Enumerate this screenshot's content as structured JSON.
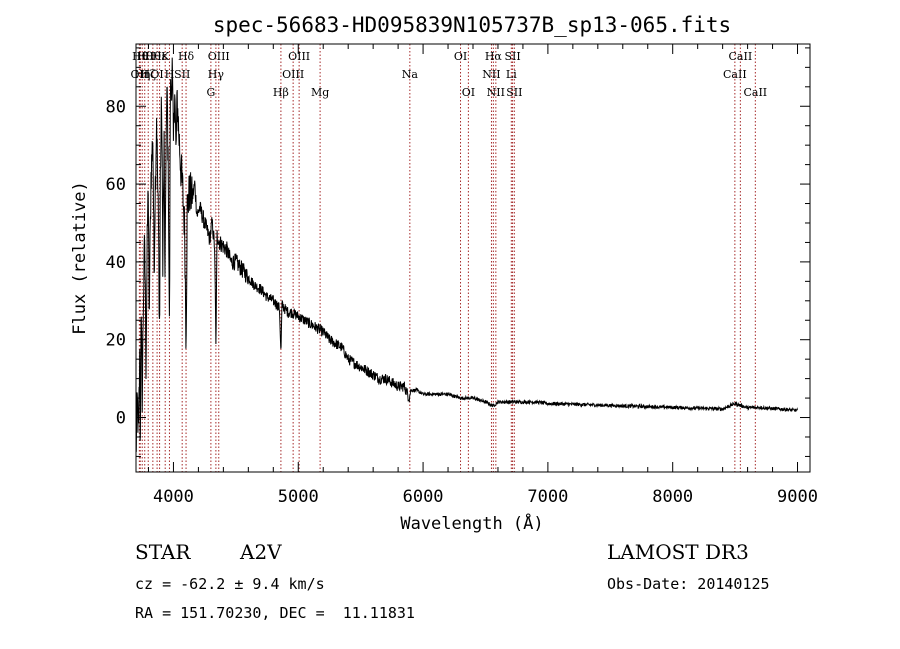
{
  "chart_data": {
    "type": "line",
    "title": "spec-56683-HD095839N105737B_sp13-065.fits",
    "xlabel": "Wavelength (Å)",
    "ylabel": "Flux (relative)",
    "xlim": [
      3700,
      9100
    ],
    "ylim": [
      -14,
      96
    ],
    "x_ticks": [
      4000,
      5000,
      6000,
      7000,
      8000,
      9000
    ],
    "x_tick_labels": [
      "4000",
      "5000",
      "6000",
      "7000",
      "8000",
      "9000"
    ],
    "y_ticks": [
      0,
      20,
      40,
      60,
      80
    ],
    "y_tick_labels": [
      "0",
      "20",
      "40",
      "60",
      "80"
    ],
    "x_minor_step": 200,
    "y_minor_step": 5,
    "series": [
      {
        "name": "spectrum",
        "x": [
          3700,
          3710,
          3720,
          3730,
          3734,
          3740,
          3750,
          3760,
          3770,
          3780,
          3790,
          3798,
          3805,
          3820,
          3835,
          3845,
          3855,
          3865,
          3880,
          3889,
          3895,
          3905,
          3915,
          3925,
          3933,
          3940,
          3950,
          3960,
          3968,
          3975,
          3990,
          4000,
          4010,
          4020,
          4030,
          4045,
          4060,
          4075,
          4090,
          4101,
          4110,
          4130,
          4150,
          4170,
          4190,
          4210,
          4230,
          4250,
          4270,
          4290,
          4310,
          4330,
          4340,
          4350,
          4370,
          4400,
          4430,
          4460,
          4500,
          4550,
          4600,
          4650,
          4700,
          4750,
          4800,
          4830,
          4850,
          4861,
          4870,
          4890,
          4920,
          4950,
          5000,
          5050,
          5100,
          5150,
          5200,
          5250,
          5300,
          5350,
          5400,
          5450,
          5500,
          5550,
          5600,
          5650,
          5700,
          5750,
          5800,
          5850,
          5890,
          5900,
          5950,
          6000,
          6100,
          6200,
          6300,
          6400,
          6500,
          6563,
          6600,
          6700,
          6800,
          6900,
          7000,
          7200,
          7400,
          7600,
          7800,
          8000,
          8200,
          8400,
          8500,
          8600,
          8700,
          8800,
          8900,
          9000
        ],
        "values": [
          -10,
          4,
          -4,
          14,
          -12,
          28,
          6,
          32,
          46,
          14,
          44,
          62,
          24,
          62,
          72,
          38,
          60,
          78,
          48,
          20,
          62,
          82,
          42,
          70,
          30,
          70,
          84,
          58,
          20,
          82,
          90,
          70,
          86,
          68,
          82,
          72,
          64,
          58,
          48,
          20,
          54,
          58,
          56,
          60,
          52,
          54,
          52,
          50,
          48,
          46,
          50,
          44,
          18,
          47,
          45,
          44,
          43,
          40,
          40,
          38,
          36,
          34,
          33,
          31,
          30,
          29,
          28,
          16,
          29,
          28,
          27,
          27,
          26,
          25,
          24,
          23,
          22,
          20,
          19,
          18,
          15,
          14,
          13,
          12,
          11,
          10,
          10,
          9,
          8,
          8,
          5,
          7,
          7,
          6,
          6,
          6,
          5,
          5,
          4,
          3,
          4,
          4,
          4,
          4,
          3.6,
          3.4,
          3.2,
          3,
          2.8,
          2.6,
          2.4,
          2.2,
          3.6,
          2.5,
          2.6,
          2.3,
          2.1,
          1.8
        ]
      }
    ],
    "line_markers": [
      {
        "w": 3727,
        "row": 1,
        "label": "OII",
        "style": "serif"
      },
      {
        "w": 3734,
        "row": 0,
        "label": "Hθ",
        "style": "serif"
      },
      {
        "w": 3750,
        "row": 1,
        "label": "Hη",
        "style": "serif"
      },
      {
        "w": 3770,
        "row": 0,
        "label": "Hθ",
        "style": "serif"
      },
      {
        "w": 3798,
        "row": 1,
        "label": "Hζ",
        "style": "serif"
      },
      {
        "w": 3835,
        "row": 0,
        "label": "Hθ",
        "style": "serif"
      },
      {
        "w": 3869,
        "row": 1,
        "label": "OI",
        "style": "serif"
      },
      {
        "w": 3889,
        "row": 0,
        "label": "Hε",
        "style": "serif"
      },
      {
        "w": 3934,
        "row": 0,
        "label": "K",
        "style": "serif"
      },
      {
        "w": 3968,
        "row": 1,
        "label": "H",
        "style": "serif"
      },
      {
        "w": 4070,
        "row": 1,
        "label": "SII",
        "style": "serif"
      },
      {
        "w": 4101,
        "row": 0,
        "label": "Hδ",
        "style": "serif"
      },
      {
        "w": 4300,
        "row": 2,
        "label": "G",
        "style": "serif"
      },
      {
        "w": 4340,
        "row": 1,
        "label": "Hγ",
        "style": "serif"
      },
      {
        "w": 4363,
        "row": 0,
        "label": "OIII",
        "style": "serif"
      },
      {
        "w": 4861,
        "row": 2,
        "label": "Hβ",
        "style": "serif"
      },
      {
        "w": 4959,
        "row": 1,
        "label": "OIII",
        "style": "serif"
      },
      {
        "w": 5007,
        "row": 0,
        "label": "OIII",
        "style": "serif"
      },
      {
        "w": 5175,
        "row": 2,
        "label": "Mg",
        "style": "serif"
      },
      {
        "w": 5894,
        "row": 1,
        "label": "Na",
        "style": "serif"
      },
      {
        "w": 6300,
        "row": 0,
        "label": "OI",
        "style": "serif"
      },
      {
        "w": 6363,
        "row": 2,
        "label": "OI",
        "style": "serif"
      },
      {
        "w": 6548,
        "row": 1,
        "label": "NII",
        "style": "serif"
      },
      {
        "w": 6563,
        "row": 0,
        "label": "Hα",
        "style": "serif"
      },
      {
        "w": 6583,
        "row": 2,
        "label": "NII",
        "style": "serif"
      },
      {
        "w": 6707,
        "row": 1,
        "label": "Li",
        "style": "serif"
      },
      {
        "w": 6717,
        "row": 0,
        "label": "SII",
        "style": "serif"
      },
      {
        "w": 6731,
        "row": 2,
        "label": "SII",
        "style": "serif"
      },
      {
        "w": 8498,
        "row": 1,
        "label": "CaII",
        "style": "serif"
      },
      {
        "w": 8542,
        "row": 0,
        "label": "CaII",
        "style": "serif"
      },
      {
        "w": 8662,
        "row": 2,
        "label": "CaII",
        "style": "serif"
      }
    ],
    "marker_color": "#a52a2a"
  },
  "info": {
    "object_class": "STAR",
    "subclass": "A2V",
    "survey": "LAMOST DR3",
    "redshift": "cz = -62.2 ± 9.4 km/s",
    "obs_date": "Obs-Date: 20140125",
    "coords": "RA = 151.70230, DEC =  11.11831"
  }
}
